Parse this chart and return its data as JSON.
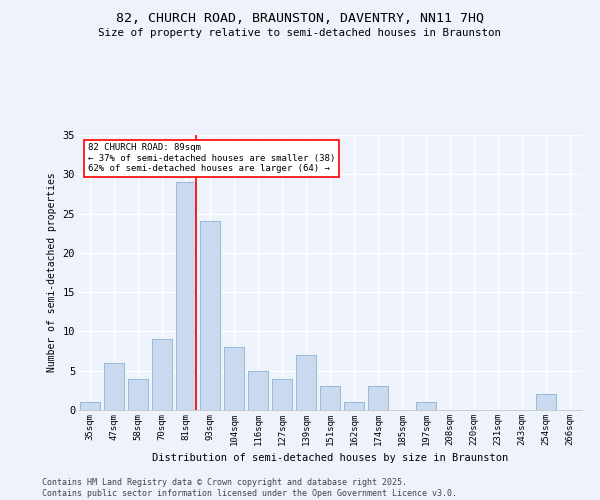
{
  "title1": "82, CHURCH ROAD, BRAUNSTON, DAVENTRY, NN11 7HQ",
  "title2": "Size of property relative to semi-detached houses in Braunston",
  "xlabel": "Distribution of semi-detached houses by size in Braunston",
  "ylabel": "Number of semi-detached properties",
  "categories": [
    "35sqm",
    "47sqm",
    "58sqm",
    "70sqm",
    "81sqm",
    "93sqm",
    "104sqm",
    "116sqm",
    "127sqm",
    "139sqm",
    "151sqm",
    "162sqm",
    "174sqm",
    "185sqm",
    "197sqm",
    "208sqm",
    "220sqm",
    "231sqm",
    "243sqm",
    "254sqm",
    "266sqm"
  ],
  "values": [
    1,
    6,
    4,
    9,
    29,
    24,
    8,
    5,
    4,
    7,
    3,
    1,
    3,
    0,
    1,
    0,
    0,
    0,
    0,
    2,
    0
  ],
  "bar_color": "#c9d9ef",
  "bar_edge_color": "#7da6cc",
  "redline_index": 4,
  "annotation_title": "82 CHURCH ROAD: 89sqm",
  "annotation_line1": "← 37% of semi-detached houses are smaller (38)",
  "annotation_line2": "62% of semi-detached houses are larger (64) →",
  "footer1": "Contains HM Land Registry data © Crown copyright and database right 2025.",
  "footer2": "Contains public sector information licensed under the Open Government Licence v3.0.",
  "bg_color": "#eef2fb",
  "plot_bg_color": "#eef2fb",
  "ylim": [
    0,
    35
  ],
  "yticks": [
    0,
    5,
    10,
    15,
    20,
    25,
    30,
    35
  ]
}
